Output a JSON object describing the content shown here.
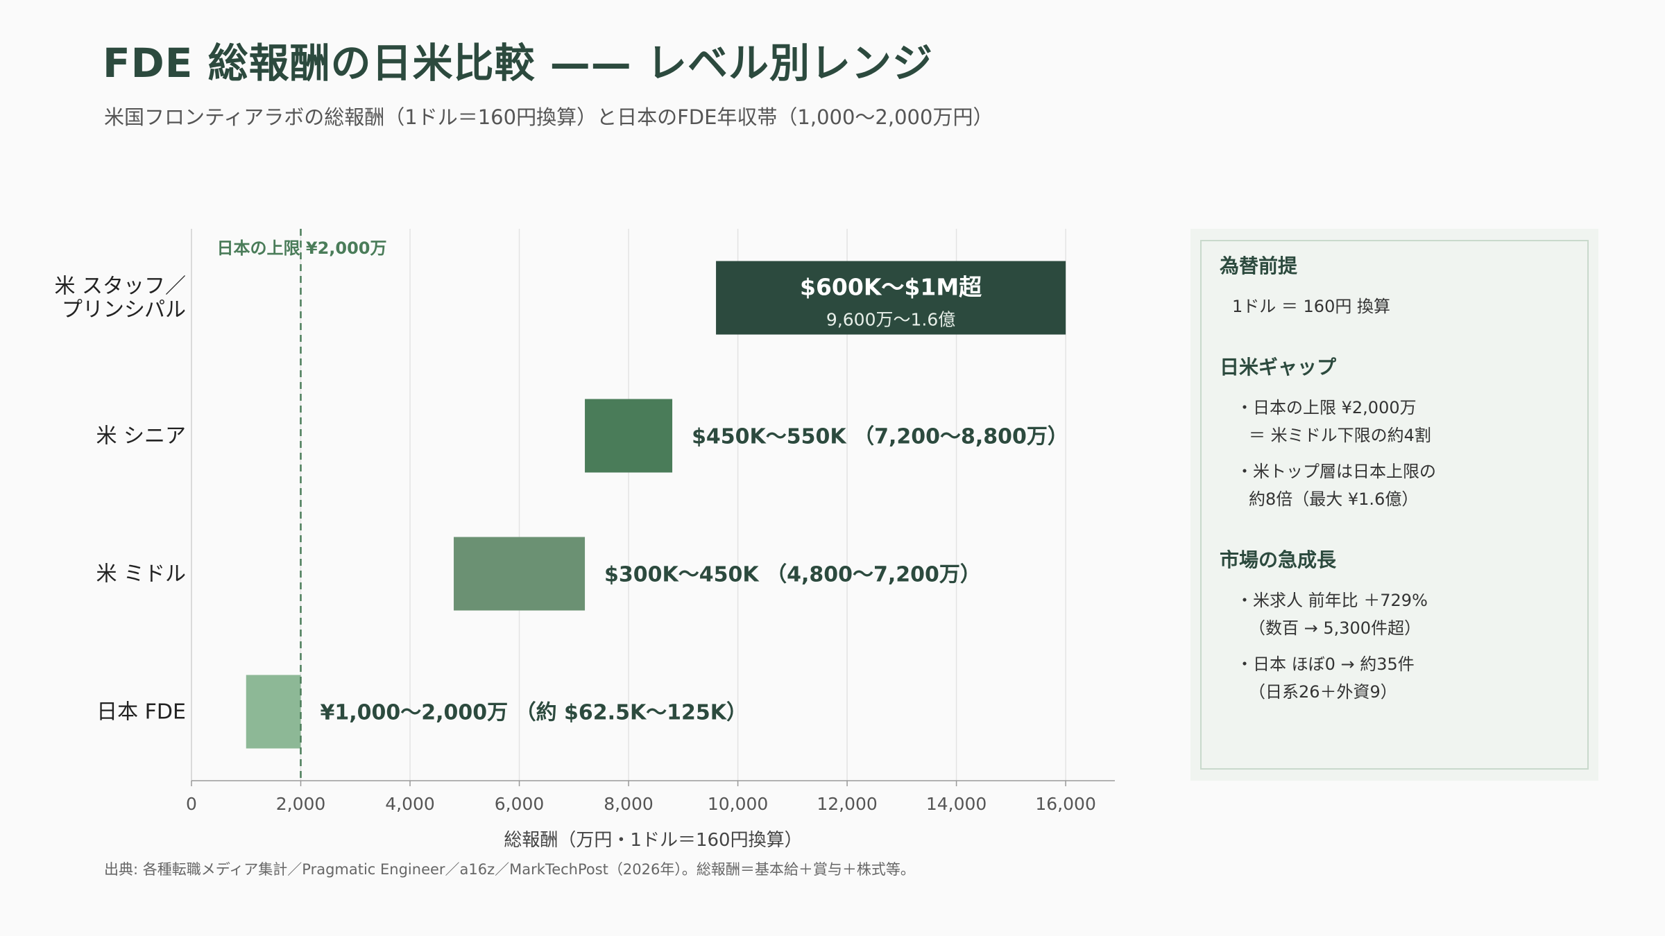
{
  "title": "FDE 総報酬の日米比較 —— レベル別レンジ",
  "subtitle": "米国フロンティアラボの総報酬（1ドル＝160円換算）と日本のFDE年収帯（1,000〜2,000万円）",
  "chart_data": {
    "type": "bar",
    "orientation": "horizontal-range",
    "xlabel": "総報酬（万円・1ドル＝160円換算）",
    "xlim": [
      0,
      16900
    ],
    "xticks": [
      0,
      2000,
      4000,
      6000,
      8000,
      10000,
      12000,
      14000,
      16000
    ],
    "xtick_labels": [
      "0",
      "2,000",
      "4,000",
      "6,000",
      "8,000",
      "10,000",
      "12,000",
      "14,000",
      "16,000"
    ],
    "grid": "vertical",
    "reference_line": {
      "x": 2000,
      "label": "日本の上限 ¥2,000万",
      "color": "#4a7c59"
    },
    "categories": [
      {
        "label_lines": [
          "米 スタッフ／",
          "プリンシパル"
        ],
        "start": 9600,
        "end": 16000,
        "color": "#2c4a3e",
        "bar_label": "$600K〜$1M超",
        "bar_sublabel": "9,600万〜1.6億",
        "label_inside": true
      },
      {
        "label_lines": [
          "米 シニア"
        ],
        "start": 7200,
        "end": 8800,
        "color": "#4a7c59",
        "bar_label": "$450K〜550K （7,200〜8,800万）",
        "bar_sublabel": "",
        "label_inside": false
      },
      {
        "label_lines": [
          "米 ミドル"
        ],
        "start": 4800,
        "end": 7200,
        "color": "#6b9173",
        "bar_label": "$300K〜450K （4,800〜7,200万）",
        "bar_sublabel": "",
        "label_inside": false
      },
      {
        "label_lines": [
          "日本 FDE"
        ],
        "start": 1000,
        "end": 2000,
        "color": "#8db896",
        "bar_label": "¥1,000〜2,000万 （約 $62.5K〜125K）",
        "bar_sublabel": "",
        "label_inside": false
      }
    ]
  },
  "panel": {
    "sections": [
      {
        "heading": "為替前提",
        "lines": [
          {
            "text": "1ドル ＝ 160円 換算",
            "indent": 0
          }
        ]
      },
      {
        "heading": "日米ギャップ",
        "lines": [
          {
            "text": "・日本の上限 ¥2,000万",
            "indent": 1
          },
          {
            "text": "＝ 米ミドル下限の約4割",
            "indent": 2
          },
          {
            "text": "・米トップ層は日本上限の",
            "indent": 1
          },
          {
            "text": "約8倍（最大 ¥1.6億）",
            "indent": 2
          }
        ]
      },
      {
        "heading": "市場の急成長",
        "lines": [
          {
            "text": "・米求人 前年比 ＋729%",
            "indent": 1
          },
          {
            "text": "（数百 → 5,300件超）",
            "indent": 2
          },
          {
            "text": "・日本 ほぼ0 → 約35件",
            "indent": 1
          },
          {
            "text": "（日系26＋外資9）",
            "indent": 2
          }
        ]
      }
    ]
  },
  "source": "出典: 各種転職メディア集計／Pragmatic Engineer／a16z／MarkTechPost（2026年）。総報酬＝基本給＋賞与＋株式等。"
}
